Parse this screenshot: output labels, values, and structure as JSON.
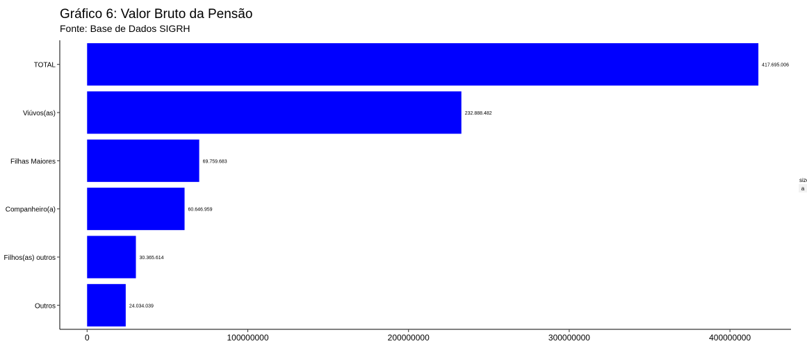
{
  "chart_data": {
    "type": "bar",
    "orientation": "horizontal",
    "title": "Gráfico 6: Valor Bruto da Pensão",
    "subtitle": "Fonte: Base de Dados SIGRH",
    "categories": [
      "TOTAL",
      "Viúvos(as)",
      "Filhas Maiores",
      "Companheiro(a)",
      "Filhos(as) outros",
      "Outros"
    ],
    "values": [
      417695006,
      232888482,
      69759683,
      60646959,
      30365614,
      24034039
    ],
    "value_labels": [
      "417.695.006",
      "232.888.482",
      "69.759.683",
      "60.646.959",
      "30.365.614",
      "24.034.039"
    ],
    "x_ticks": [
      0,
      100000000,
      200000000,
      300000000,
      400000000
    ],
    "x_tick_labels": [
      "0",
      "100000000",
      "200000000",
      "300000000",
      "400000000"
    ],
    "xlim": [
      -17000000,
      438000000
    ],
    "bar_color": "#0000ff",
    "grid": false,
    "legend": {
      "title": "size",
      "key": "a",
      "placement": "right"
    }
  }
}
